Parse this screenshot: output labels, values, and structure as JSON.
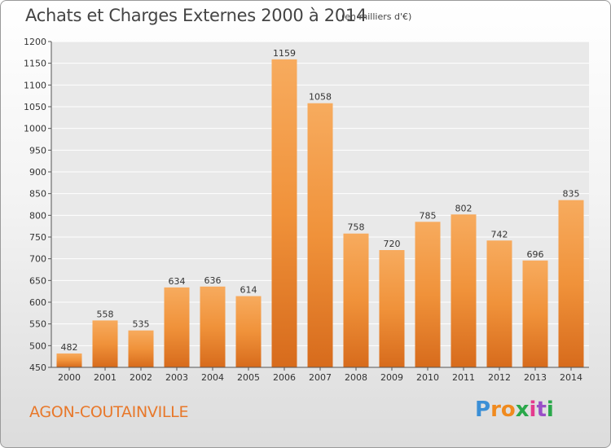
{
  "chart_data": {
    "type": "bar",
    "title": "Achats et Charges Externes 2000 à 2014",
    "subtitle": "(en milliers d'€)",
    "categories": [
      "2000",
      "2001",
      "2002",
      "2003",
      "2004",
      "2005",
      "2006",
      "2007",
      "2008",
      "2009",
      "2010",
      "2011",
      "2012",
      "2013",
      "2014"
    ],
    "values": [
      482,
      558,
      535,
      634,
      636,
      614,
      1159,
      1058,
      758,
      720,
      785,
      802,
      742,
      696,
      835
    ],
    "ylim": [
      450,
      1200
    ],
    "yticks": [
      450,
      500,
      550,
      600,
      650,
      700,
      750,
      800,
      850,
      900,
      950,
      1000,
      1050,
      1100,
      1150,
      1200
    ],
    "grid": true,
    "bar_color": "#f0923a",
    "bar_color_light": "#f7ab5e",
    "bar_color_dark": "#d76b1c"
  },
  "footer": {
    "place": "AGON-COUTAINVILLE",
    "logo_letters": [
      "P",
      "r",
      "o",
      "x",
      "i",
      "t",
      "i"
    ],
    "logo_colors": [
      "#3b8fd6",
      "#f08a1e",
      "#f08a1e",
      "#2aa84a",
      "#e43a8e",
      "#9a4fc7",
      "#2aa84a"
    ]
  }
}
